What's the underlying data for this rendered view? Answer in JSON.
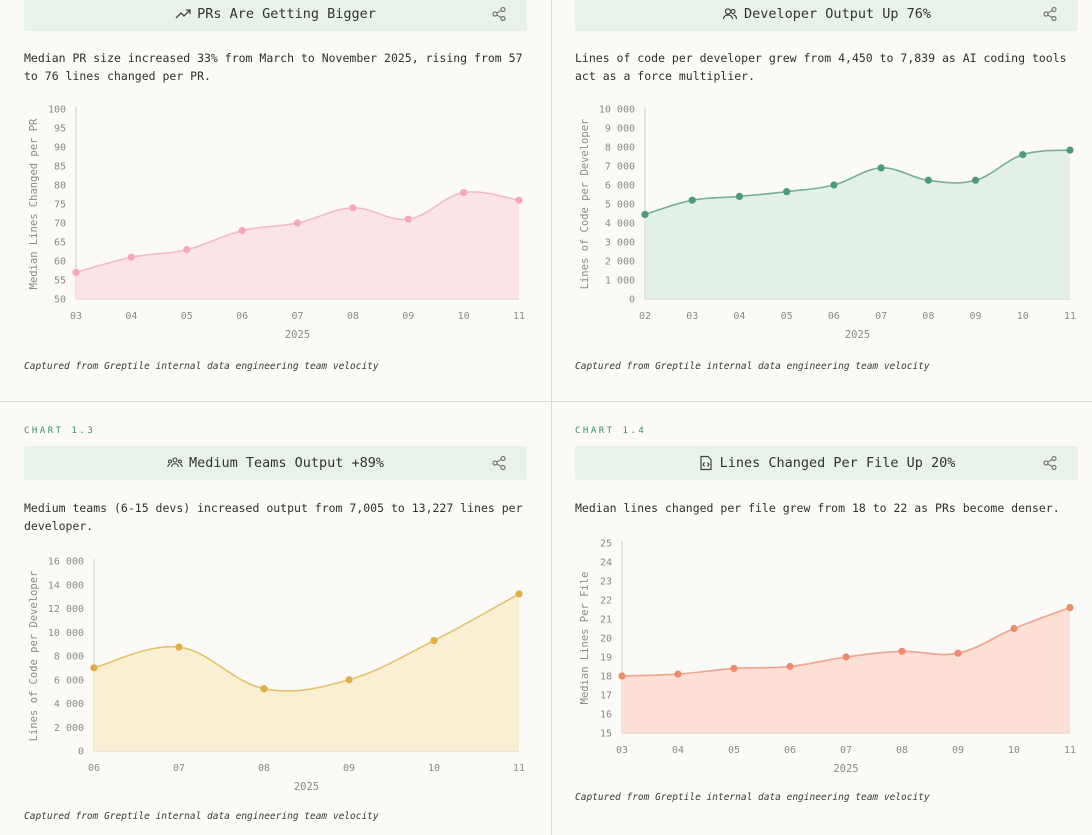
{
  "panels": [
    {
      "chart_no": "",
      "title": "PRs Are Getting Bigger",
      "title_icon": "trending-up-icon",
      "description": "Median PR size increased 33% from March to November 2025, rising from 57 to 76 lines changed per PR.",
      "caption": "Captured from Greptile internal data engineering team velocity"
    },
    {
      "chart_no": "",
      "title": "Developer Output Up 76%",
      "title_icon": "users-icon",
      "description": "Lines of code per developer grew from 4,450 to 7,839 as AI coding tools act as a force multiplier.",
      "caption": "Captured from Greptile internal data engineering team velocity"
    },
    {
      "chart_no": "CHART 1.3",
      "title": "Medium Teams Output +89%",
      "title_icon": "team-icon",
      "description": "Medium teams (6-15 devs) increased output from 7,005 to 13,227 lines per developer.",
      "caption": "Captured from Greptile internal data engineering team velocity"
    },
    {
      "chart_no": "CHART 1.4",
      "title": "Lines Changed Per File Up 20%",
      "title_icon": "file-code-icon",
      "description": "Median lines changed per file grew from 18 to 22 as PRs become denser.",
      "caption": "Captured from Greptile internal data engineering team velocity"
    }
  ],
  "colors": {
    "pink": "#f3a9b9",
    "pink_fill": "#fbe1e6",
    "green": "#4f9a78",
    "green_fill": "#dfeee4",
    "yellow": "#ddb047",
    "yellow_fill": "#f8edcf",
    "orange": "#ec8b6f",
    "orange_fill": "#fcdcd2",
    "header_bg": "#e8f1ea",
    "chart_no": "#3e8c68"
  },
  "chart_data": [
    {
      "type": "area",
      "x": [
        "03",
        "04",
        "05",
        "06",
        "07",
        "08",
        "09",
        "10",
        "11"
      ],
      "values": [
        57,
        61,
        63,
        68,
        70,
        74,
        71,
        78,
        76
      ],
      "ylim": [
        50,
        100
      ],
      "yticks": [
        "50",
        "55",
        "60",
        "65",
        "70",
        "75",
        "80",
        "85",
        "90",
        "95",
        "100"
      ],
      "xlabel": "2025",
      "ylabel": "Median Lines Changed per PR",
      "color_key": "pink"
    },
    {
      "type": "area",
      "x": [
        "02",
        "03",
        "04",
        "05",
        "06",
        "07",
        "08",
        "09",
        "10",
        "11"
      ],
      "values": [
        4450,
        5200,
        5400,
        5650,
        6000,
        6900,
        6250,
        6250,
        7600,
        7839
      ],
      "ylim": [
        0,
        10000
      ],
      "yticks": [
        "0",
        "1 000",
        "2 000",
        "3 000",
        "4 000",
        "5 000",
        "6 000",
        "7 000",
        "8 000",
        "9 000",
        "10 000"
      ],
      "xlabel": "2025",
      "ylabel": "Lines of Code per Developer",
      "color_key": "green"
    },
    {
      "type": "area",
      "x": [
        "06",
        "07",
        "08",
        "09",
        "10",
        "11"
      ],
      "values": [
        7005,
        8750,
        5250,
        6000,
        9300,
        13227
      ],
      "ylim": [
        0,
        16000
      ],
      "yticks": [
        "0",
        "2 000",
        "4 000",
        "6 000",
        "8 000",
        "10 000",
        "12 000",
        "14 000",
        "16 000"
      ],
      "xlabel": "2025",
      "ylabel": "Lines of Code per Developer",
      "color_key": "yellow"
    },
    {
      "type": "area",
      "x": [
        "03",
        "04",
        "05",
        "06",
        "07",
        "08",
        "09",
        "10",
        "11"
      ],
      "values": [
        18,
        18.1,
        18.4,
        18.5,
        19,
        19.3,
        19.2,
        20.5,
        21.6
      ],
      "ylim": [
        15,
        25
      ],
      "yticks": [
        "15",
        "16",
        "17",
        "18",
        "19",
        "20",
        "21",
        "22",
        "23",
        "24",
        "25"
      ],
      "xlabel": "2025",
      "ylabel": "Median Lines Per File",
      "color_key": "orange"
    }
  ]
}
